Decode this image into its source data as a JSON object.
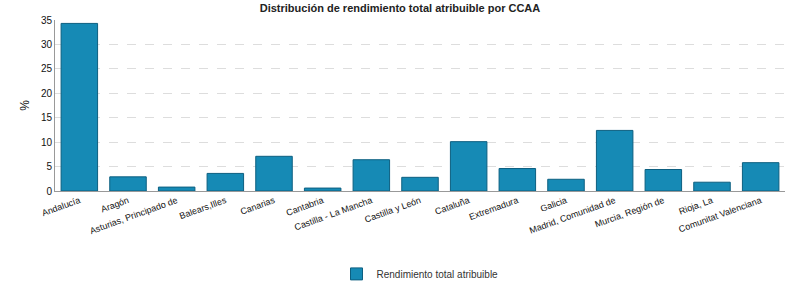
{
  "chart_data": {
    "type": "bar",
    "title": "Distribución de rendimiento total atribuible por CCAA",
    "y_label": "%",
    "categories": [
      "Andalucía",
      "Aragón",
      "Asturias, Principado de",
      "Balears,Illes",
      "Canarias",
      "Cantabria",
      "Castilla - La Mancha",
      "Castilla y León",
      "Cataluña",
      "Extremadura",
      "Galicia",
      "Madrid, Comunidad de",
      "Murcia, Región de",
      "Rioja, La",
      "Comunitat Valenciana"
    ],
    "series": [
      {
        "name": "Rendimiento total atribuible",
        "color": "#168ab5",
        "values": [
          34.3,
          2.9,
          0.8,
          3.6,
          7.1,
          0.6,
          6.4,
          2.8,
          10.1,
          4.6,
          2.4,
          12.4,
          4.4,
          1.8,
          5.8
        ]
      }
    ],
    "ylim": [
      0,
      35
    ],
    "yticks": [
      0,
      5,
      10,
      15,
      20,
      25,
      30,
      35
    ],
    "grid": true,
    "legend": "bottom"
  }
}
